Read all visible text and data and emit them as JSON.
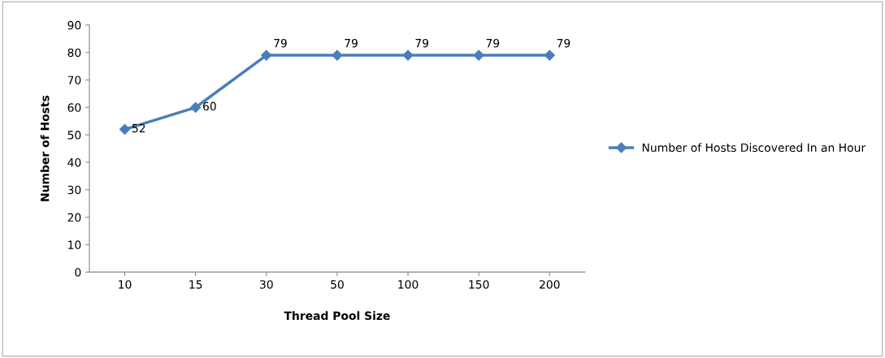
{
  "chart_data": {
    "type": "line",
    "xlabel": "Thread Pool Size",
    "ylabel": "Number of Hosts",
    "categories": [
      "10",
      "15",
      "30",
      "50",
      "100",
      "150",
      "200"
    ],
    "series": [
      {
        "name": "Number of Hosts Discovered In an Hour",
        "color": "#4a7ebb",
        "values": [
          52,
          60,
          79,
          79,
          79,
          79,
          79
        ]
      }
    ],
    "ylim": [
      0,
      90
    ],
    "yticks": [
      0,
      10,
      20,
      30,
      40,
      50,
      60,
      70,
      80,
      90
    ],
    "grid": false,
    "legend": "right",
    "marker": "diamond",
    "line_style": "solid",
    "data_labels": true
  }
}
